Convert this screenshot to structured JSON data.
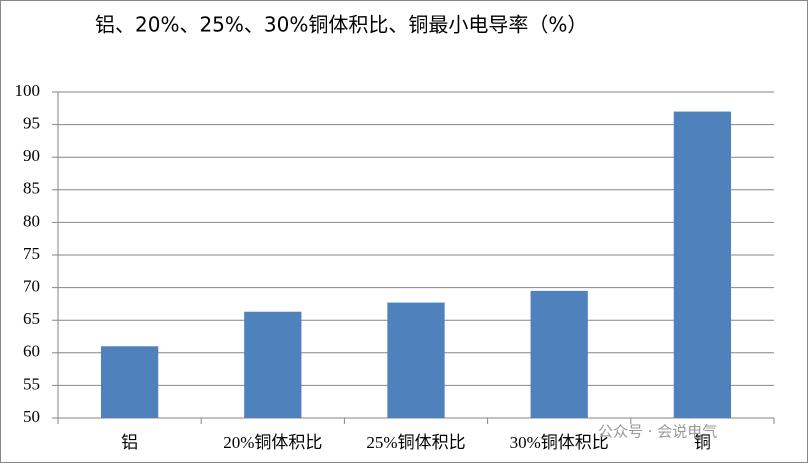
{
  "chart_data": {
    "type": "bar",
    "title": "铝、20%、25%、30%铜体积比、铜最小电导率（%）",
    "categories": [
      "铝",
      "20%铜体积比",
      "25%铜体积比",
      "30%铜体积比",
      "铜"
    ],
    "values": [
      61,
      66.3,
      67.7,
      69.5,
      97
    ],
    "color": "#4f81bd",
    "ylim": [
      50,
      100
    ],
    "yticks": [
      50,
      55,
      60,
      65,
      70,
      75,
      80,
      85,
      90,
      95,
      100
    ],
    "grid": true,
    "watermark": "公众号 · 会说电气"
  }
}
